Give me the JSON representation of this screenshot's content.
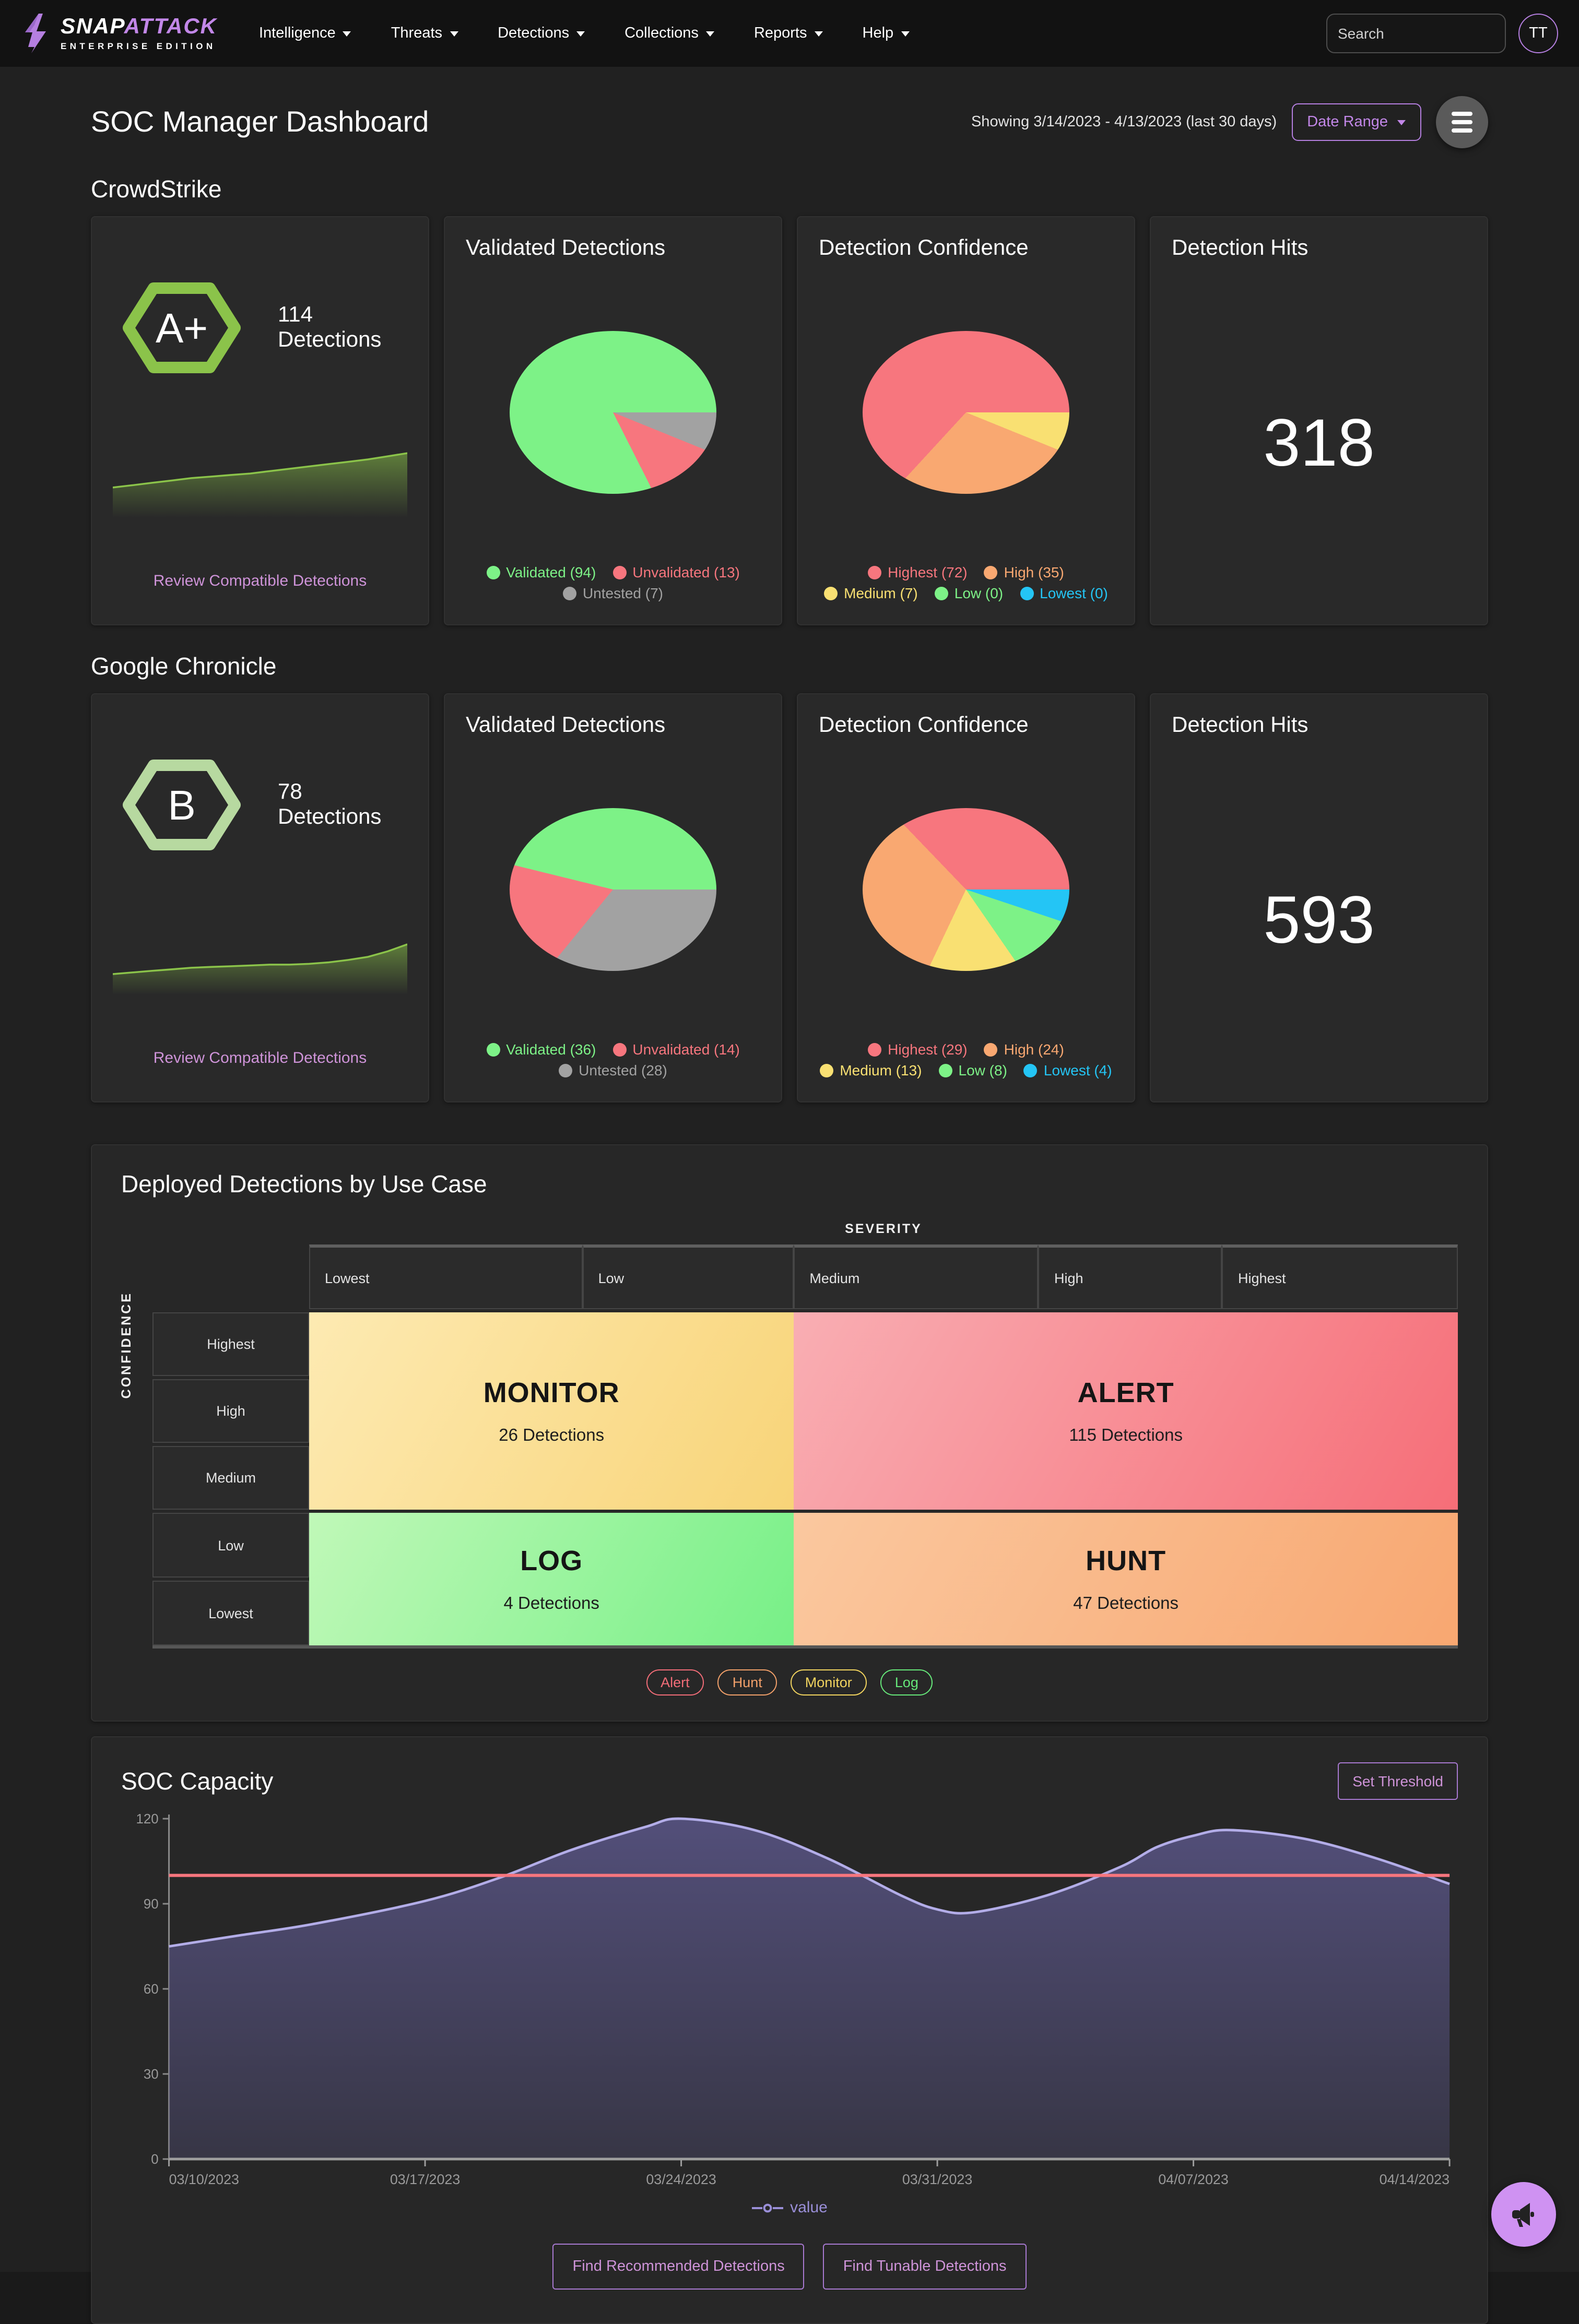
{
  "nav": {
    "logo_primary": "SNAP",
    "logo_secondary": "ATTACK",
    "logo_subtitle": "ENTERPRISE EDITION",
    "items": [
      "Intelligence",
      "Threats",
      "Detections",
      "Collections",
      "Reports",
      "Help"
    ],
    "search_placeholder": "Search",
    "avatar": "TT"
  },
  "header": {
    "title": "SOC Manager Dashboard",
    "showing": "Showing 3/14/2023 - 4/13/2023 (last 30 days)",
    "date_range_label": "Date Range"
  },
  "crowdstrike": {
    "name": "CrowdStrike",
    "grade": "A+",
    "grade_color": "#8bc34a",
    "detections": "114 Detections",
    "review_link": "Review Compatible Detections",
    "validated_title": "Validated Detections",
    "validated_legend": [
      {
        "label": "Validated (94)",
        "color": "#7df287"
      },
      {
        "label": "Unvalidated (13)",
        "color": "#f7767e"
      },
      {
        "label": "Untested (7)",
        "color": "#a2a2a2"
      }
    ],
    "confidence_title": "Detection Confidence",
    "confidence_legend": [
      {
        "label": "Highest (72)",
        "color": "#f7767e"
      },
      {
        "label": "High (35)",
        "color": "#f9a871"
      },
      {
        "label": "Medium (7)",
        "color": "#f9e072"
      },
      {
        "label": "Low (0)",
        "color": "#7df287"
      },
      {
        "label": "Lowest (0)",
        "color": "#24c5f5"
      }
    ],
    "hits_title": "Detection Hits",
    "hits_value": "318"
  },
  "chronicle": {
    "name": "Google Chronicle",
    "grade": "B",
    "grade_color": "#b7d9a0",
    "detections": "78 Detections",
    "review_link": "Review Compatible Detections",
    "validated_title": "Validated Detections",
    "validated_legend": [
      {
        "label": "Validated (36)",
        "color": "#7df287"
      },
      {
        "label": "Unvalidated (14)",
        "color": "#f7767e"
      },
      {
        "label": "Untested (28)",
        "color": "#a2a2a2"
      }
    ],
    "confidence_title": "Detection Confidence",
    "confidence_legend": [
      {
        "label": "Highest (29)",
        "color": "#f7767e"
      },
      {
        "label": "High (24)",
        "color": "#f9a871"
      },
      {
        "label": "Medium (13)",
        "color": "#f9e072"
      },
      {
        "label": "Low (8)",
        "color": "#7df287"
      },
      {
        "label": "Lowest (4)",
        "color": "#24c5f5"
      }
    ],
    "hits_title": "Detection Hits",
    "hits_value": "593"
  },
  "quadrant": {
    "title": "Deployed Detections by Use Case",
    "axis_top": "SEVERITY",
    "axis_left": "CONFIDENCE",
    "severity_labels": [
      "Lowest",
      "Low",
      "Medium",
      "High",
      "Highest"
    ],
    "confidence_labels": [
      "Highest",
      "High",
      "Medium",
      "Low",
      "Lowest"
    ],
    "cells": {
      "monitor": {
        "label": "MONITOR",
        "sub": "26 Detections"
      },
      "alert": {
        "label": "ALERT",
        "sub": "115 Detections"
      },
      "log": {
        "label": "LOG",
        "sub": "4 Detections"
      },
      "hunt": {
        "label": "HUNT",
        "sub": "47 Detections"
      }
    },
    "chips": [
      {
        "label": "Alert",
        "color": "#f26d78"
      },
      {
        "label": "Hunt",
        "color": "#f2a06a"
      },
      {
        "label": "Monitor",
        "color": "#f2d45f"
      },
      {
        "label": "Log",
        "color": "#66e87a"
      }
    ]
  },
  "soc": {
    "title": "SOC Capacity",
    "set_threshold_label": "Set Threshold",
    "legend_label": "value",
    "buttons": [
      "Find Recommended Detections",
      "Find Tunable Detections"
    ]
  },
  "chart_data": [
    {
      "id": "cs_spark",
      "type": "area",
      "title": "CrowdStrike detections trend",
      "color": "#8bc34a",
      "values": [
        30,
        33,
        36,
        39,
        42,
        44,
        46,
        48,
        51,
        54,
        57,
        60,
        63,
        66,
        70,
        74
      ]
    },
    {
      "id": "gc_spark",
      "type": "area",
      "title": "Google Chronicle detections trend",
      "color": "#8bc34a",
      "values": [
        18,
        20,
        22,
        24,
        26,
        27,
        28,
        29,
        30,
        30,
        31,
        33,
        36,
        40,
        47,
        56
      ]
    },
    {
      "id": "cs_validated",
      "type": "pie",
      "title": "CrowdStrike Validated Detections",
      "slices": [
        {
          "label": "Untested",
          "value": 7,
          "color": "#a2a2a2"
        },
        {
          "label": "Unvalidated",
          "value": 13,
          "color": "#f7767e"
        },
        {
          "label": "Validated",
          "value": 94,
          "color": "#7df287"
        }
      ]
    },
    {
      "id": "cs_confidence",
      "type": "pie",
      "title": "CrowdStrike Detection Confidence",
      "slices": [
        {
          "label": "Medium",
          "value": 7,
          "color": "#f9e072"
        },
        {
          "label": "High",
          "value": 35,
          "color": "#f9a871"
        },
        {
          "label": "Highest",
          "value": 72,
          "color": "#f7767e"
        }
      ]
    },
    {
      "id": "gc_validated",
      "type": "pie",
      "title": "Google Chronicle Validated Detections",
      "slices": [
        {
          "label": "Untested",
          "value": 28,
          "color": "#a2a2a2"
        },
        {
          "label": "Unvalidated",
          "value": 14,
          "color": "#f7767e"
        },
        {
          "label": "Validated",
          "value": 36,
          "color": "#7df287"
        }
      ]
    },
    {
      "id": "gc_confidence",
      "type": "pie",
      "title": "Google Chronicle Detection Confidence",
      "slices": [
        {
          "label": "Lowest",
          "value": 4,
          "color": "#24c5f5"
        },
        {
          "label": "Low",
          "value": 8,
          "color": "#7df287"
        },
        {
          "label": "Medium",
          "value": 13,
          "color": "#f9e072"
        },
        {
          "label": "High",
          "value": 24,
          "color": "#f9a871"
        },
        {
          "label": "Highest",
          "value": 29,
          "color": "#f7767e"
        }
      ]
    },
    {
      "id": "quadrant",
      "type": "heatmap",
      "title": "Deployed Detections by Use Case",
      "x_axis": "SEVERITY",
      "y_axis": "CONFIDENCE",
      "cells": [
        {
          "use_case": "MONITOR",
          "detections": 26,
          "severity": [
            "Lowest",
            "Low"
          ],
          "confidence": [
            "Highest",
            "High",
            "Medium"
          ]
        },
        {
          "use_case": "ALERT",
          "detections": 115,
          "severity": [
            "Medium",
            "High",
            "Highest"
          ],
          "confidence": [
            "Highest",
            "High",
            "Medium"
          ]
        },
        {
          "use_case": "LOG",
          "detections": 4,
          "severity": [
            "Lowest",
            "Low"
          ],
          "confidence": [
            "Low",
            "Lowest"
          ]
        },
        {
          "use_case": "HUNT",
          "detections": 47,
          "severity": [
            "Medium",
            "High",
            "Highest"
          ],
          "confidence": [
            "Low",
            "Lowest"
          ]
        }
      ]
    },
    {
      "id": "soc_capacity",
      "type": "area",
      "title": "SOC Capacity",
      "ylim": [
        0,
        120
      ],
      "yticks": [
        0,
        30,
        60,
        90,
        120
      ],
      "threshold": 100,
      "series_name": "value",
      "points": [
        [
          0,
          75
        ],
        [
          2,
          79
        ],
        [
          4,
          83
        ],
        [
          7,
          91
        ],
        [
          9,
          99
        ],
        [
          11,
          109
        ],
        [
          13,
          117
        ],
        [
          14,
          120
        ],
        [
          16,
          116
        ],
        [
          18,
          106
        ],
        [
          20,
          93
        ],
        [
          21,
          88
        ],
        [
          22,
          87
        ],
        [
          24,
          93
        ],
        [
          26,
          103
        ],
        [
          27,
          110
        ],
        [
          28,
          114
        ],
        [
          29,
          116
        ],
        [
          31,
          113
        ],
        [
          33,
          106
        ],
        [
          35,
          97
        ]
      ],
      "xticks": [
        {
          "d": 0,
          "label": "03/10/2023"
        },
        {
          "d": 7,
          "label": "03/17/2023"
        },
        {
          "d": 14,
          "label": "03/24/2023"
        },
        {
          "d": 21,
          "label": "03/31/2023"
        },
        {
          "d": 28,
          "label": "04/07/2023"
        },
        {
          "d": 35,
          "label": "04/14/2023"
        }
      ],
      "colors": {
        "line": "#b3ade8",
        "fill": "#55517e",
        "threshold": "#f7767e"
      }
    }
  ]
}
